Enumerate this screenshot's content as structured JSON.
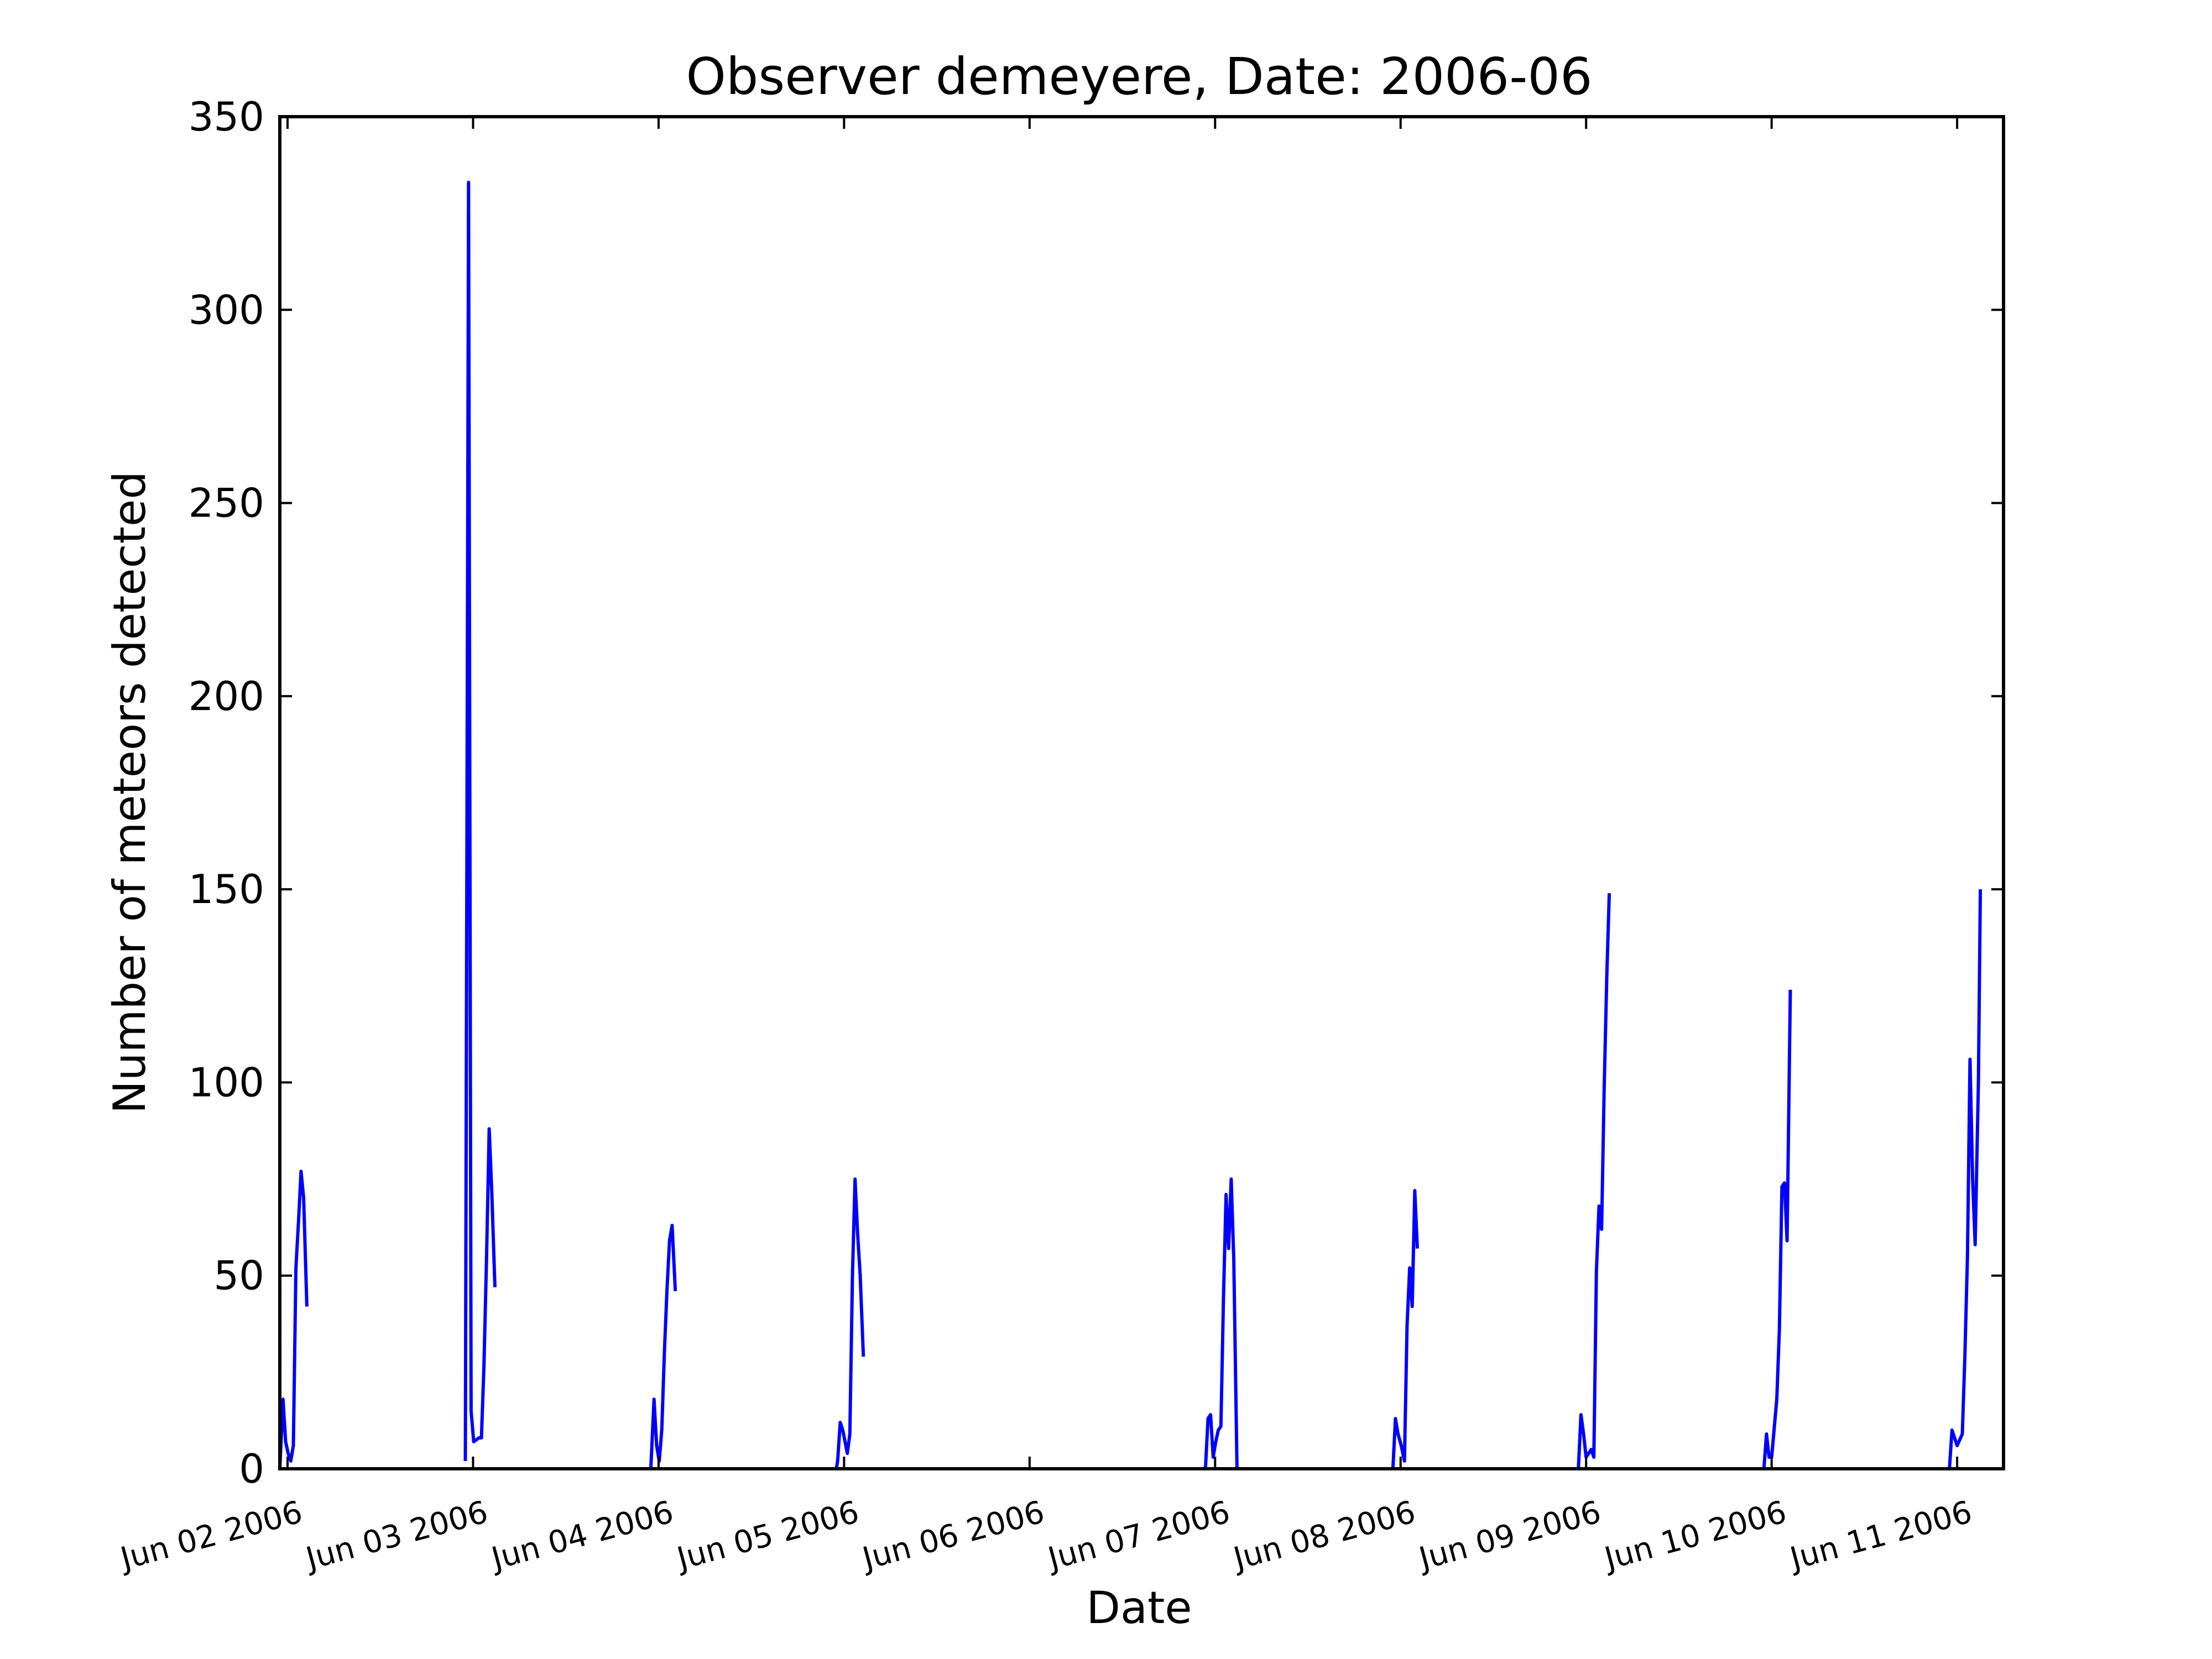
{
  "chart_data": {
    "type": "line",
    "title": "Observer demeyere, Date: 2006-06",
    "xlabel": "Date",
    "ylabel": "Number of meteors detected",
    "xlim": [
      "2006-06-01 23:00",
      "2006-06-11 06:00"
    ],
    "ylim": [
      0,
      350
    ],
    "yticks": [
      0,
      50,
      100,
      150,
      200,
      250,
      300,
      350
    ],
    "xticks": [
      {
        "value": "2006-06-02 00:00",
        "label": "Jun 02 2006"
      },
      {
        "value": "2006-06-03 00:00",
        "label": "Jun 03 2006"
      },
      {
        "value": "2006-06-04 00:00",
        "label": "Jun 04 2006"
      },
      {
        "value": "2006-06-05 00:00",
        "label": "Jun 05 2006"
      },
      {
        "value": "2006-06-06 00:00",
        "label": "Jun 06 2006"
      },
      {
        "value": "2006-06-07 00:00",
        "label": "Jun 07 2006"
      },
      {
        "value": "2006-06-08 00:00",
        "label": "Jun 08 2006"
      },
      {
        "value": "2006-06-09 00:00",
        "label": "Jun 09 2006"
      },
      {
        "value": "2006-06-10 00:00",
        "label": "Jun 10 2006"
      },
      {
        "value": "2006-06-11 00:00",
        "label": "Jun 11 2006"
      }
    ],
    "grid": false,
    "colors": {
      "line": "#0000ff",
      "frame": "#000000"
    },
    "segments": [
      [
        [
          "2006-06-01 23:00",
          0
        ],
        [
          "2006-06-01 23:25",
          18
        ],
        [
          "2006-06-01 23:45",
          7
        ],
        [
          "2006-06-02 00:05",
          4
        ],
        [
          "2006-06-02 00:25",
          2
        ],
        [
          "2006-06-02 00:45",
          6
        ],
        [
          "2006-06-02 01:05",
          52
        ],
        [
          "2006-06-02 01:25",
          64
        ],
        [
          "2006-06-02 01:45",
          77
        ],
        [
          "2006-06-02 02:05",
          70
        ],
        [
          "2006-06-02 02:30",
          42
        ]
      ],
      [
        [
          "2006-06-02 23:00",
          2
        ],
        [
          "2006-06-02 23:25",
          333
        ],
        [
          "2006-06-02 23:45",
          15
        ],
        [
          "2006-06-03 00:05",
          7
        ],
        [
          "2006-06-03 00:25",
          7.5
        ],
        [
          "2006-06-03 00:45",
          8
        ],
        [
          "2006-06-03 01:05",
          8
        ],
        [
          "2006-06-03 01:25",
          27
        ],
        [
          "2006-06-03 01:45",
          55
        ],
        [
          "2006-06-03 02:05",
          88
        ],
        [
          "2006-06-03 02:25",
          72
        ],
        [
          "2006-06-03 02:50",
          47
        ]
      ],
      [
        [
          "2006-06-03 23:00",
          0
        ],
        [
          "2006-06-03 23:25",
          18
        ],
        [
          "2006-06-03 23:45",
          6
        ],
        [
          "2006-06-04 00:05",
          2
        ],
        [
          "2006-06-04 00:25",
          10
        ],
        [
          "2006-06-04 00:45",
          30
        ],
        [
          "2006-06-04 01:05",
          46
        ],
        [
          "2006-06-04 01:25",
          59
        ],
        [
          "2006-06-04 01:45",
          63
        ],
        [
          "2006-06-04 02:10",
          46
        ]
      ],
      [
        [
          "2006-06-04 23:00",
          0
        ],
        [
          "2006-06-04 23:10",
          2
        ],
        [
          "2006-06-04 23:30",
          12
        ],
        [
          "2006-06-04 23:50",
          10
        ],
        [
          "2006-06-05 00:25",
          4
        ],
        [
          "2006-06-05 00:45",
          9
        ],
        [
          "2006-06-05 01:05",
          50
        ],
        [
          "2006-06-05 01:25",
          75
        ],
        [
          "2006-06-05 01:45",
          61
        ],
        [
          "2006-06-05 02:05",
          50
        ],
        [
          "2006-06-05 02:30",
          29
        ]
      ],
      [
        [
          "2006-06-06 22:45",
          0
        ],
        [
          "2006-06-06 23:05",
          13
        ],
        [
          "2006-06-06 23:25",
          14
        ],
        [
          "2006-06-06 23:45",
          3
        ],
        [
          "2006-06-07 00:05",
          7
        ],
        [
          "2006-06-07 00:25",
          10
        ],
        [
          "2006-06-07 00:45",
          11
        ],
        [
          "2006-06-07 01:05",
          44
        ],
        [
          "2006-06-07 01:25",
          71
        ],
        [
          "2006-06-07 01:45",
          57
        ],
        [
          "2006-06-07 02:05",
          75
        ],
        [
          "2006-06-07 02:25",
          54
        ],
        [
          "2006-06-07 02:50",
          0
        ]
      ],
      [
        [
          "2006-06-07 23:00",
          0
        ],
        [
          "2006-06-07 23:20",
          13
        ],
        [
          "2006-06-07 23:40",
          9
        ],
        [
          "2006-06-08 00:05",
          6
        ],
        [
          "2006-06-08 00:30",
          2
        ],
        [
          "2006-06-08 00:50",
          37
        ],
        [
          "2006-06-08 01:10",
          52
        ],
        [
          "2006-06-08 01:30",
          42
        ],
        [
          "2006-06-08 01:50",
          72
        ],
        [
          "2006-06-08 02:10",
          57
        ]
      ],
      [
        [
          "2006-06-08 23:00",
          0
        ],
        [
          "2006-06-08 23:20",
          14
        ],
        [
          "2006-06-08 23:40",
          9
        ],
        [
          "2006-06-09 00:00",
          3
        ],
        [
          "2006-06-09 00:20",
          4
        ],
        [
          "2006-06-09 00:40",
          5
        ],
        [
          "2006-06-09 01:00",
          3
        ],
        [
          "2006-06-09 01:20",
          51
        ],
        [
          "2006-06-09 01:40",
          68
        ],
        [
          "2006-06-09 02:00",
          62
        ],
        [
          "2006-06-09 02:20",
          98
        ],
        [
          "2006-06-09 02:40",
          127
        ],
        [
          "2006-06-09 03:00",
          149
        ]
      ],
      [
        [
          "2006-06-09 23:00",
          0
        ],
        [
          "2006-06-09 23:20",
          9
        ],
        [
          "2006-06-09 23:40",
          3
        ],
        [
          "2006-06-10 00:00",
          3
        ],
        [
          "2006-06-10 00:40",
          18
        ],
        [
          "2006-06-10 01:00",
          36
        ],
        [
          "2006-06-10 01:20",
          73
        ],
        [
          "2006-06-10 01:40",
          74
        ],
        [
          "2006-06-10 02:00",
          59
        ],
        [
          "2006-06-10 02:25",
          124
        ]
      ],
      [
        [
          "2006-06-10 23:00",
          0
        ],
        [
          "2006-06-10 23:20",
          10
        ],
        [
          "2006-06-10 23:40",
          8
        ],
        [
          "2006-06-11 00:00",
          6
        ],
        [
          "2006-06-11 00:40",
          9
        ],
        [
          "2006-06-11 01:00",
          29
        ],
        [
          "2006-06-11 01:20",
          55
        ],
        [
          "2006-06-11 01:40",
          106
        ],
        [
          "2006-06-11 02:00",
          75
        ],
        [
          "2006-06-11 02:20",
          58
        ],
        [
          "2006-06-11 02:45",
          100
        ],
        [
          "2006-06-11 03:00",
          150
        ]
      ]
    ]
  }
}
